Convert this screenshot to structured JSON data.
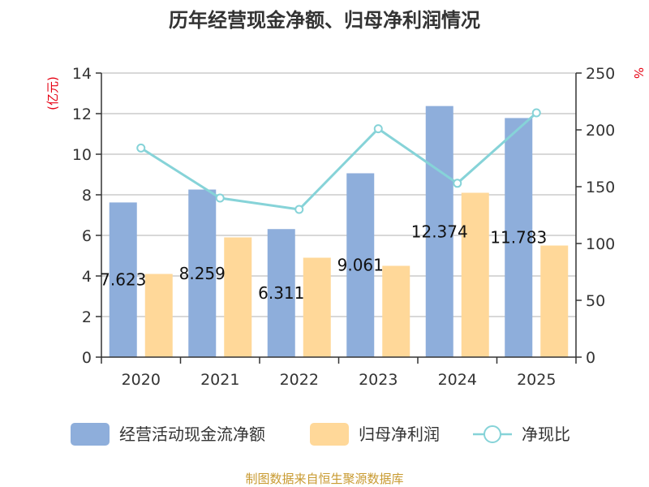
{
  "chart_data": {
    "type": "bar",
    "title": "历年经营现金净额、归母净利润情况",
    "categories": [
      "2020",
      "2021",
      "2022",
      "2023",
      "2024",
      "2025"
    ],
    "series": [
      {
        "name": "经营活动现金流净额",
        "type": "bar",
        "axis": "left",
        "color": "#8eaedb",
        "values": [
          7.623,
          8.259,
          6.311,
          9.061,
          12.374,
          11.783
        ],
        "labels": [
          "7.623",
          "8.259",
          "6.311",
          "9.061",
          "12.374",
          "11.783"
        ]
      },
      {
        "name": "归母净利润",
        "type": "bar",
        "axis": "left",
        "color": "#ffd899",
        "values": [
          4.1,
          5.9,
          4.9,
          4.5,
          8.1,
          5.5
        ]
      },
      {
        "name": "净现比",
        "type": "line",
        "axis": "right",
        "color": "#86d3d8",
        "values": [
          184,
          140,
          130,
          201,
          153,
          215
        ]
      }
    ],
    "y_left": {
      "unit": "(亿元)",
      "min": 0,
      "max": 14,
      "ticks": [
        0,
        2,
        4,
        6,
        8,
        10,
        12,
        14
      ]
    },
    "y_right": {
      "unit": "%",
      "min": 0,
      "max": 250,
      "ticks": [
        0,
        50,
        100,
        150,
        200,
        250
      ]
    },
    "grid": true,
    "legend_position": "bottom"
  },
  "source": "制图数据来自恒生聚源数据库"
}
